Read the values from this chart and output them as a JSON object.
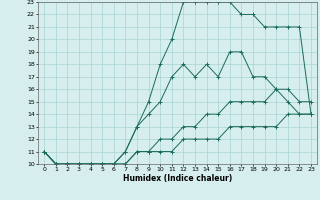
{
  "xlabel": "Humidex (Indice chaleur)",
  "xlim": [
    -0.5,
    23.5
  ],
  "ylim": [
    10,
    23
  ],
  "yticks": [
    10,
    11,
    12,
    13,
    14,
    15,
    16,
    17,
    18,
    19,
    20,
    21,
    22,
    23
  ],
  "xticks": [
    0,
    1,
    2,
    3,
    4,
    5,
    6,
    7,
    8,
    9,
    10,
    11,
    12,
    13,
    14,
    15,
    16,
    17,
    18,
    19,
    20,
    21,
    22,
    23
  ],
  "line_color": "#1a6b5a",
  "bg_color": "#d6eeee",
  "grid_color": "#aad4d4",
  "lines": [
    {
      "x": [
        0,
        1,
        2,
        3,
        4,
        5,
        6,
        7,
        8,
        9,
        10,
        11,
        12,
        13,
        14,
        15,
        16,
        17,
        18,
        19,
        20,
        21,
        22,
        23
      ],
      "y": [
        11,
        10,
        10,
        10,
        10,
        10,
        10,
        11,
        13,
        15,
        18,
        20,
        23,
        23,
        23,
        23,
        23,
        22,
        22,
        21,
        21,
        21,
        21,
        14
      ]
    },
    {
      "x": [
        0,
        1,
        2,
        3,
        4,
        5,
        6,
        7,
        8,
        9,
        10,
        11,
        12,
        13,
        14,
        15,
        16,
        17,
        18,
        19,
        20,
        21,
        22,
        23
      ],
      "y": [
        11,
        10,
        10,
        10,
        10,
        10,
        10,
        11,
        13,
        14,
        15,
        17,
        18,
        17,
        18,
        17,
        19,
        19,
        17,
        17,
        16,
        15,
        14,
        14
      ]
    },
    {
      "x": [
        0,
        1,
        2,
        3,
        4,
        5,
        6,
        7,
        8,
        9,
        10,
        11,
        12,
        13,
        14,
        15,
        16,
        17,
        18,
        19,
        20,
        21,
        22,
        23
      ],
      "y": [
        11,
        10,
        10,
        10,
        10,
        10,
        10,
        10,
        11,
        11,
        12,
        12,
        13,
        13,
        14,
        14,
        15,
        15,
        15,
        15,
        16,
        16,
        15,
        15
      ]
    },
    {
      "x": [
        0,
        1,
        2,
        3,
        4,
        5,
        6,
        7,
        8,
        9,
        10,
        11,
        12,
        13,
        14,
        15,
        16,
        17,
        18,
        19,
        20,
        21,
        22,
        23
      ],
      "y": [
        11,
        10,
        10,
        10,
        10,
        10,
        10,
        10,
        11,
        11,
        11,
        11,
        12,
        12,
        12,
        12,
        13,
        13,
        13,
        13,
        13,
        14,
        14,
        14
      ]
    }
  ]
}
